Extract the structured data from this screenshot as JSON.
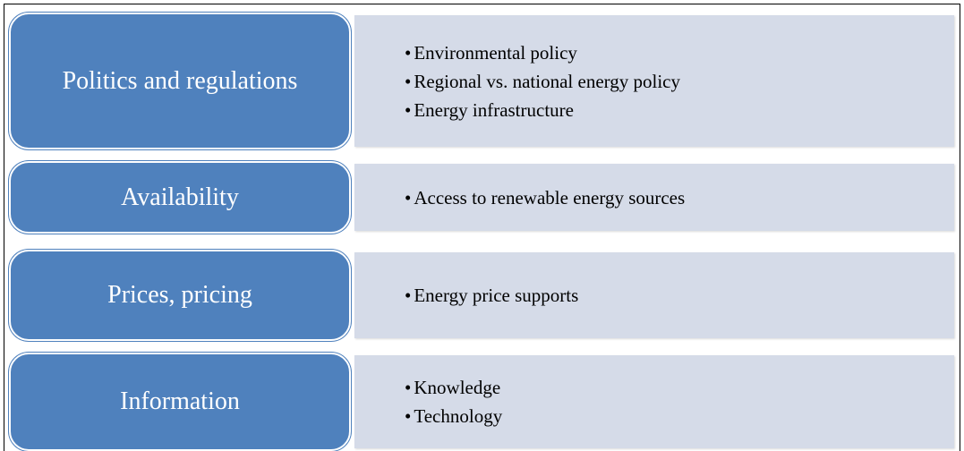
{
  "rows": [
    {
      "label": "Politics and regulations",
      "items": [
        "Environmental policy",
        "Regional vs. national energy policy",
        "Energy infrastructure"
      ]
    },
    {
      "label": "Availability",
      "items": [
        "Access to renewable energy sources"
      ]
    },
    {
      "label": "Prices, pricing",
      "items": [
        "Energy price supports"
      ]
    },
    {
      "label": "Information",
      "items": [
        "Knowledge",
        "Technology"
      ]
    }
  ]
}
